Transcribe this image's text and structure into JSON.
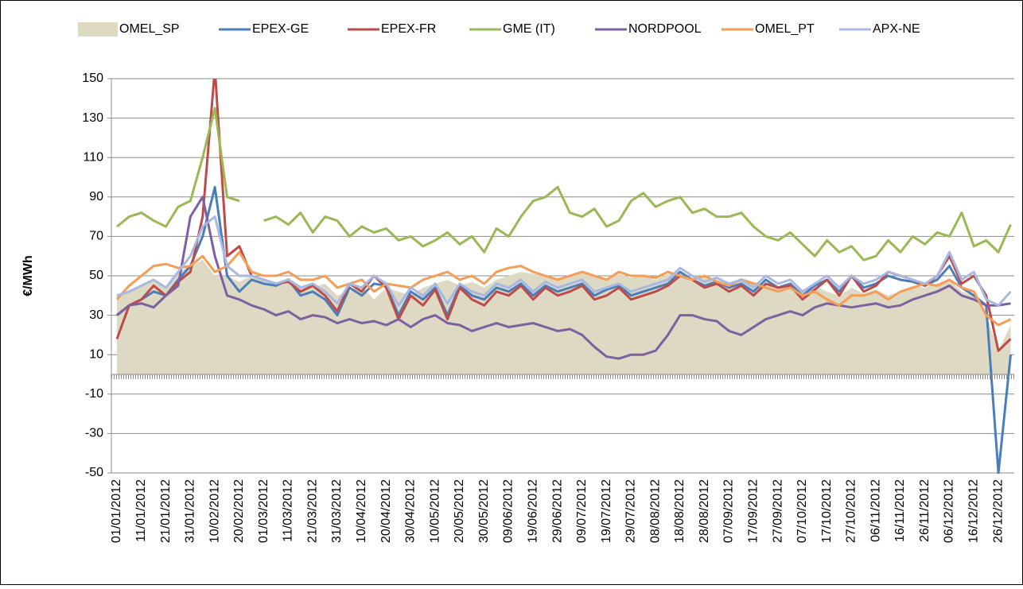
{
  "chart_data": {
    "type": "line",
    "y_label": "€/MWh",
    "ylim": [
      -50,
      150
    ],
    "yticks": [
      -50,
      -30,
      -10,
      10,
      30,
      50,
      70,
      90,
      110,
      130,
      150
    ],
    "grid": true,
    "legend": "top",
    "categories": [
      "01/01/2012",
      null,
      "11/01/2012",
      null,
      "21/01/2012",
      null,
      "31/01/2012",
      null,
      "10/02/2012",
      null,
      "20/02/2012",
      null,
      "01/03/2012",
      null,
      "11/03/2012",
      null,
      "21/03/2012",
      null,
      "31/03/2012",
      null,
      "10/04/2012",
      null,
      "20/04/2012",
      null,
      "30/04/2012",
      null,
      "10/05/2012",
      null,
      "20/05/2012",
      null,
      "30/05/2012",
      null,
      "09/06/2012",
      null,
      "19/06/2012",
      null,
      "29/06/2012",
      null,
      "09/07/2012",
      null,
      "19/07/2012",
      null,
      "29/07/2012",
      null,
      "08/08/2012",
      null,
      "18/08/2012",
      null,
      "28/08/2012",
      null,
      "07/09/2012",
      null,
      "17/09/2012",
      null,
      "27/09/2012",
      null,
      "07/10/2012",
      null,
      "17/10/2012",
      null,
      "27/10/2012",
      null,
      "06/11/2012",
      null,
      "16/11/2012",
      null,
      "26/11/2012",
      null,
      "06/12/2012",
      null,
      "16/12/2012",
      null,
      "26/12/2012",
      null
    ],
    "series": [
      {
        "name": "OMEL_SP",
        "type": "area",
        "color": "#ddd9c3",
        "values": [
          40,
          42,
          45,
          48,
          44,
          52,
          55,
          58,
          50,
          50,
          47,
          50,
          48,
          46,
          49,
          45,
          44,
          46,
          40,
          42,
          45,
          38,
          44,
          42,
          40,
          44,
          46,
          48,
          45,
          47,
          44,
          48,
          50,
          52,
          51,
          50,
          49,
          50,
          52,
          50,
          48,
          51,
          49,
          50,
          48,
          51,
          52,
          49,
          50,
          48,
          46,
          49,
          47,
          45,
          44,
          46,
          43,
          45,
          42,
          40,
          44,
          41,
          43,
          40,
          42,
          45,
          44,
          46,
          48,
          42,
          40,
          30,
          12,
          25
        ]
      },
      {
        "name": "EPEX-GE",
        "type": "line",
        "color": "#4a7ebb",
        "values": [
          30,
          35,
          38,
          42,
          40,
          48,
          55,
          70,
          95,
          50,
          42,
          48,
          46,
          45,
          48,
          40,
          42,
          38,
          30,
          44,
          40,
          46,
          45,
          30,
          42,
          38,
          44,
          30,
          45,
          40,
          38,
          44,
          42,
          46,
          40,
          45,
          42,
          44,
          46,
          40,
          43,
          45,
          40,
          42,
          44,
          46,
          52,
          48,
          45,
          47,
          44,
          46,
          42,
          48,
          44,
          46,
          40,
          45,
          48,
          42,
          50,
          44,
          46,
          50,
          48,
          47,
          45,
          48,
          55,
          44,
          40,
          35,
          -50,
          10
        ]
      },
      {
        "name": "EPEX-FR",
        "type": "line",
        "color": "#be4b48",
        "values": [
          18,
          35,
          38,
          45,
          40,
          47,
          52,
          80,
          155,
          60,
          65,
          50,
          48,
          46,
          47,
          42,
          45,
          40,
          32,
          46,
          42,
          50,
          44,
          28,
          40,
          35,
          43,
          28,
          44,
          38,
          35,
          42,
          40,
          45,
          38,
          44,
          40,
          42,
          45,
          38,
          40,
          44,
          38,
          40,
          42,
          45,
          50,
          48,
          44,
          46,
          42,
          45,
          40,
          46,
          44,
          45,
          38,
          43,
          48,
          40,
          50,
          42,
          45,
          52,
          50,
          48,
          45,
          50,
          60,
          46,
          50,
          40,
          12,
          18
        ]
      },
      {
        "name": "GME (IT)",
        "type": "line",
        "color": "#98b954",
        "values": [
          75,
          80,
          82,
          78,
          75,
          85,
          88,
          110,
          135,
          90,
          88,
          null,
          78,
          80,
          76,
          82,
          72,
          80,
          78,
          70,
          75,
          72,
          74,
          68,
          70,
          65,
          68,
          72,
          66,
          70,
          62,
          74,
          70,
          80,
          88,
          90,
          95,
          82,
          80,
          84,
          75,
          78,
          88,
          92,
          85,
          88,
          90,
          82,
          84,
          80,
          80,
          82,
          75,
          70,
          68,
          72,
          66,
          60,
          68,
          62,
          65,
          58,
          60,
          68,
          62,
          70,
          66,
          72,
          70,
          82,
          65,
          68,
          62,
          76
        ]
      },
      {
        "name": "NORDPOOL",
        "type": "line",
        "color": "#7d60a0",
        "values": [
          30,
          35,
          36,
          34,
          40,
          45,
          80,
          90,
          60,
          40,
          38,
          35,
          33,
          30,
          32,
          28,
          30,
          29,
          26,
          28,
          26,
          27,
          25,
          28,
          24,
          28,
          30,
          26,
          25,
          22,
          24,
          26,
          24,
          25,
          26,
          24,
          22,
          23,
          20,
          14,
          9,
          8,
          10,
          10,
          12,
          20,
          30,
          30,
          28,
          27,
          22,
          20,
          24,
          28,
          30,
          32,
          30,
          34,
          36,
          35,
          34,
          35,
          36,
          34,
          35,
          38,
          40,
          42,
          45,
          40,
          38,
          35,
          35,
          36
        ]
      },
      {
        "name": "OMEL_PT",
        "type": "line",
        "color": "#f59d56",
        "values": [
          38,
          45,
          50,
          55,
          56,
          54,
          55,
          60,
          52,
          55,
          62,
          52,
          50,
          50,
          52,
          48,
          48,
          50,
          44,
          46,
          48,
          42,
          46,
          45,
          44,
          48,
          50,
          52,
          48,
          50,
          46,
          52,
          54,
          55,
          52,
          50,
          48,
          50,
          52,
          50,
          48,
          52,
          50,
          50,
          49,
          52,
          50,
          48,
          50,
          47,
          45,
          48,
          46,
          44,
          42,
          44,
          40,
          42,
          38,
          35,
          40,
          40,
          42,
          38,
          42,
          44,
          46,
          45,
          48,
          44,
          42,
          30,
          25,
          28
        ]
      },
      {
        "name": "APX-NE",
        "type": "line",
        "color": "#a7b9e3",
        "values": [
          40,
          42,
          45,
          48,
          44,
          52,
          60,
          75,
          80,
          55,
          50,
          50,
          48,
          46,
          48,
          44,
          46,
          42,
          36,
          46,
          44,
          50,
          46,
          35,
          44,
          40,
          46,
          36,
          46,
          42,
          40,
          46,
          44,
          48,
          42,
          47,
          44,
          46,
          48,
          42,
          44,
          46,
          42,
          44,
          46,
          48,
          54,
          50,
          47,
          49,
          46,
          48,
          44,
          50,
          46,
          48,
          42,
          46,
          50,
          44,
          50,
          46,
          48,
          52,
          50,
          48,
          46,
          50,
          62,
          48,
          52,
          38,
          35,
          42
        ]
      }
    ]
  }
}
